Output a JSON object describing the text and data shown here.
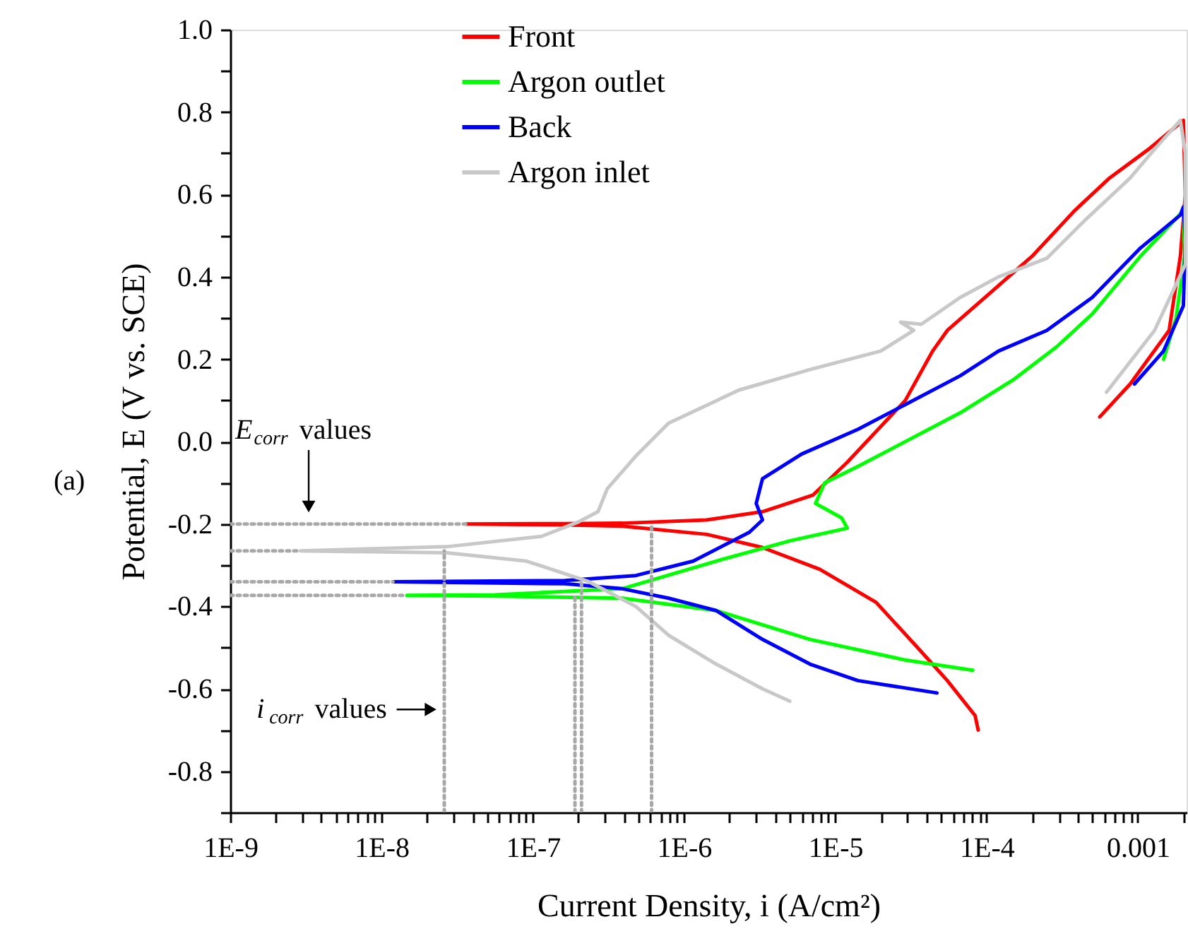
{
  "chart_data": {
    "type": "line",
    "xlabel": "Current Density, i (A/cm²)",
    "ylabel": "Potential, E (V vs. SCE)",
    "log": "x",
    "xlim": [
      1e-09,
      0.0021
    ],
    "ylim": [
      -0.9,
      1.0
    ],
    "xticks": [
      {
        "value": 1e-09,
        "label": "1E-9"
      },
      {
        "value": 2e-09,
        "label": null
      },
      {
        "value": 3e-09,
        "label": null
      },
      {
        "value": 4e-09,
        "label": null
      },
      {
        "value": 5e-09,
        "label": null
      },
      {
        "value": 6e-09,
        "label": null
      },
      {
        "value": 7e-09,
        "label": null
      },
      {
        "value": 8e-09,
        "label": null
      },
      {
        "value": 9e-09,
        "label": null
      },
      {
        "value": 1e-08,
        "label": "1E-8"
      },
      {
        "value": 2e-08,
        "label": null
      },
      {
        "value": 3e-08,
        "label": null
      },
      {
        "value": 4e-08,
        "label": null
      },
      {
        "value": 5e-08,
        "label": null
      },
      {
        "value": 6e-08,
        "label": null
      },
      {
        "value": 7e-08,
        "label": null
      },
      {
        "value": 8e-08,
        "label": null
      },
      {
        "value": 9e-08,
        "label": null
      },
      {
        "value": 1e-07,
        "label": "1E-7"
      },
      {
        "value": 2e-07,
        "label": null
      },
      {
        "value": 3e-07,
        "label": null
      },
      {
        "value": 4e-07,
        "label": null
      },
      {
        "value": 5e-07,
        "label": null
      },
      {
        "value": 6e-07,
        "label": null
      },
      {
        "value": 7e-07,
        "label": null
      },
      {
        "value": 8e-07,
        "label": null
      },
      {
        "value": 9e-07,
        "label": null
      },
      {
        "value": 1e-06,
        "label": "1E-6"
      },
      {
        "value": 2e-06,
        "label": null
      },
      {
        "value": 3e-06,
        "label": null
      },
      {
        "value": 4e-06,
        "label": null
      },
      {
        "value": 5e-06,
        "label": null
      },
      {
        "value": 6e-06,
        "label": null
      },
      {
        "value": 7e-06,
        "label": null
      },
      {
        "value": 8e-06,
        "label": null
      },
      {
        "value": 9e-06,
        "label": null
      },
      {
        "value": 1e-05,
        "label": "1E-5"
      },
      {
        "value": 2e-05,
        "label": null
      },
      {
        "value": 3e-05,
        "label": null
      },
      {
        "value": 4e-05,
        "label": null
      },
      {
        "value": 5e-05,
        "label": null
      },
      {
        "value": 6e-05,
        "label": null
      },
      {
        "value": 7e-05,
        "label": null
      },
      {
        "value": 8e-05,
        "label": null
      },
      {
        "value": 9e-05,
        "label": null
      },
      {
        "value": 0.0001,
        "label": "1E-4"
      },
      {
        "value": 0.0002,
        "label": null
      },
      {
        "value": 0.0003,
        "label": null
      },
      {
        "value": 0.0004,
        "label": null
      },
      {
        "value": 0.0005,
        "label": null
      },
      {
        "value": 0.0006,
        "label": null
      },
      {
        "value": 0.0007,
        "label": null
      },
      {
        "value": 0.0008,
        "label": null
      },
      {
        "value": 0.0009,
        "label": null
      },
      {
        "value": 0.001,
        "label": "0.001"
      },
      {
        "value": 0.002,
        "label": null
      }
    ],
    "yticks": [
      {
        "value": -0.9,
        "label": null
      },
      -0.8,
      {
        "value": -0.7,
        "label": null
      },
      -0.6,
      {
        "value": -0.5,
        "label": null
      },
      -0.4,
      {
        "value": -0.3,
        "label": null
      },
      -0.2,
      {
        "value": -0.1,
        "label": null
      },
      {
        "value": 0,
        "label": "0.0"
      },
      {
        "value": 0.1,
        "label": null
      },
      0.2,
      {
        "value": 0.3,
        "label": null
      },
      0.4,
      {
        "value": 0.5,
        "label": null
      },
      0.6,
      {
        "value": 0.7,
        "label": null
      },
      0.8,
      {
        "value": 0.9,
        "label": null
      },
      {
        "value": 1,
        "label": "1.0"
      }
    ],
    "grid": false,
    "legend": "top",
    "annotations": [
      {
        "text": "E$_{corr}$ values",
        "x": 3.3e-09,
        "y": -0.185
      },
      {
        "text": "i$_{corr}$ values",
        "x": 2.4e-08,
        "y": -0.65
      },
      "(a)"
    ],
    "series": [
      {
        "name": "Front",
        "color": "#ff0000",
        "x": [
          8.8e-05,
          8.4e-05,
          5.5e-05,
          3.5e-05,
          1.86e-05,
          7.9e-06,
          3.3e-06,
          1.41e-06,
          3.9e-07,
          1.63e-07,
          3.6e-08,
          1.63e-07,
          3.9e-07,
          1.41e-06,
          3.3e-06,
          7.1e-06,
          1.2e-05,
          2.9e-05,
          4.4e-05,
          5.5e-05,
          0.000105,
          0.0002,
          0.00038,
          0.00065,
          0.00118,
          0.002,
          0.00206,
          0.00191,
          0.00161,
          0.00089,
          0.00056
        ],
        "values": [
          -0.7,
          -0.665,
          -0.58,
          -0.5,
          -0.39,
          -0.31,
          -0.257,
          -0.225,
          -0.205,
          -0.202,
          -0.2,
          -0.199,
          -0.198,
          -0.19,
          -0.17,
          -0.13,
          -0.05,
          0.1,
          0.22,
          0.27,
          0.36,
          0.45,
          0.56,
          0.64,
          0.71,
          0.78,
          0.6,
          0.45,
          0.27,
          0.14,
          0.06
        ]
      },
      {
        "name": "Argon outlet",
        "color": "#00ff00",
        "x": [
          8.1e-05,
          2.9e-05,
          6.8e-06,
          1.63e-06,
          3.9e-07,
          5.6e-08,
          1.47e-08,
          5.6e-08,
          3.9e-07,
          1.63e-06,
          5.1e-06,
          1.2e-05,
          1.1e-05,
          7.4e-06,
          8.5e-06,
          1.41e-05,
          2.9e-05,
          6.7e-05,
          0.00015,
          0.00029,
          0.0005,
          0.00104,
          0.002,
          0.00204,
          0.00179,
          0.00148
        ],
        "values": [
          -0.555,
          -0.53,
          -0.48,
          -0.41,
          -0.38,
          -0.375,
          -0.373,
          -0.372,
          -0.357,
          -0.29,
          -0.24,
          -0.21,
          -0.185,
          -0.15,
          -0.1,
          -0.06,
          0.0,
          0.07,
          0.15,
          0.23,
          0.31,
          0.45,
          0.56,
          0.45,
          0.3,
          0.2
        ]
      },
      {
        "name": "Back",
        "color": "#0000ff",
        "x": [
          4.7e-05,
          1.41e-05,
          6.8e-06,
          3.3e-06,
          1.63e-06,
          7.9e-07,
          3.9e-07,
          1.63e-07,
          1.19e-08,
          1.63e-07,
          4.8e-07,
          1.15e-06,
          2.7e-06,
          3.3e-06,
          3e-06,
          3.3e-06,
          6e-06,
          1.41e-05,
          2.9e-05,
          6.7e-05,
          0.00012,
          0.00025,
          0.0005,
          0.00104,
          0.00191,
          0.002,
          0.00206,
          0.002,
          0.00148,
          0.00095
        ],
        "values": [
          -0.61,
          -0.58,
          -0.54,
          -0.48,
          -0.41,
          -0.38,
          -0.357,
          -0.345,
          -0.34,
          -0.337,
          -0.325,
          -0.29,
          -0.22,
          -0.19,
          -0.15,
          -0.09,
          -0.03,
          0.03,
          0.09,
          0.16,
          0.22,
          0.27,
          0.35,
          0.47,
          0.55,
          0.57,
          0.49,
          0.33,
          0.22,
          0.14
        ]
      },
      {
        "name": "Argon inlet",
        "color": "#c8c8c8",
        "x": [
          5e-06,
          3.3e-06,
          1.63e-06,
          7.9e-07,
          4.8e-07,
          2.35e-07,
          9.1e-08,
          2.7e-08,
          2.9e-09,
          2.7e-08,
          1.14e-07,
          2e-07,
          2.7e-07,
          3.1e-07,
          4.8e-07,
          7.9e-07,
          2.3e-06,
          6.8e-06,
          2e-05,
          3.3e-05,
          2.7e-05,
          3.7e-05,
          6.7e-05,
          0.00012,
          0.00025,
          0.00044,
          0.00089,
          0.00129,
          0.00191,
          0.00206,
          0.00206,
          0.00129,
          0.00062
        ],
        "values": [
          -0.63,
          -0.6,
          -0.54,
          -0.47,
          -0.4,
          -0.34,
          -0.29,
          -0.27,
          -0.265,
          -0.255,
          -0.23,
          -0.195,
          -0.17,
          -0.115,
          -0.035,
          0.045,
          0.125,
          0.175,
          0.22,
          0.27,
          0.29,
          0.285,
          0.35,
          0.4,
          0.445,
          0.535,
          0.64,
          0.71,
          0.78,
          0.7,
          0.43,
          0.27,
          0.12
        ]
      },
      {
        "color": "#a8a8a8",
        "line_style": "dotted",
        "x": [
          1e-09,
          3.6e-08
        ],
        "values": [
          -0.2,
          -0.2
        ]
      },
      {
        "color": "#a8a8a8",
        "line_style": "dotted",
        "x": [
          1e-09,
          2.9e-09
        ],
        "values": [
          -0.265,
          -0.265
        ]
      },
      {
        "color": "#a8a8a8",
        "line_style": "dotted",
        "x": [
          1e-09,
          1.19e-08
        ],
        "values": [
          -0.34,
          -0.34
        ]
      },
      {
        "color": "#a8a8a8",
        "line_style": "dotted",
        "x": [
          1e-09,
          1.47e-08
        ],
        "values": [
          -0.373,
          -0.373
        ]
      },
      {
        "color": "#a8a8a8",
        "line_style": "dotted",
        "x": [
          2.6e-08,
          2.6e-08
        ],
        "values": [
          -0.9,
          -0.265
        ]
      },
      {
        "color": "#a8a8a8",
        "line_style": "dotted",
        "x": [
          1.9e-07,
          1.9e-07
        ],
        "values": [
          -0.9,
          -0.373
        ]
      },
      {
        "color": "#a8a8a8",
        "line_style": "dotted",
        "x": [
          2.1e-07,
          2.1e-07
        ],
        "values": [
          -0.9,
          -0.34
        ]
      },
      {
        "color": "#a8a8a8",
        "line_style": "dotted",
        "x": [
          6.1e-07,
          6.1e-07
        ],
        "values": [
          -0.9,
          -0.2
        ]
      }
    ]
  }
}
